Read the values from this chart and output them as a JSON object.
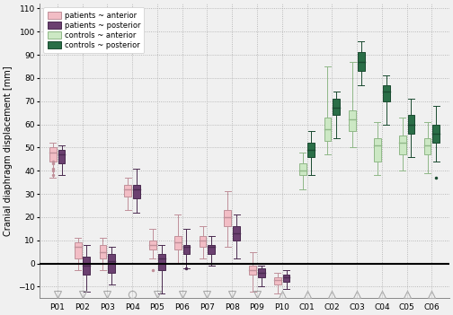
{
  "subjects": [
    "P01",
    "P02",
    "P03",
    "P04",
    "P05",
    "P06",
    "P07",
    "P08",
    "P09",
    "P10",
    "C01",
    "C02",
    "C03",
    "C04",
    "C05",
    "C06"
  ],
  "patient_anterior": {
    "P01": {
      "q1": 44,
      "med": 48,
      "q3": 50,
      "whislo": 37,
      "whishi": 52,
      "fliers": [
        38,
        40,
        41,
        43,
        44
      ]
    },
    "P02": {
      "q1": 2,
      "med": 7,
      "q3": 9,
      "whislo": -3,
      "whishi": 11,
      "fliers": []
    },
    "P03": {
      "q1": 2,
      "med": 5,
      "q3": 8,
      "whislo": -3,
      "whishi": 11,
      "fliers": []
    },
    "P04": {
      "q1": 29,
      "med": 32,
      "q3": 34,
      "whislo": 23,
      "whishi": 37,
      "fliers": []
    },
    "P05": {
      "q1": 6,
      "med": 8,
      "q3": 10,
      "whislo": 2,
      "whishi": 15,
      "fliers": [
        -3
      ]
    },
    "P06": {
      "q1": 6,
      "med": 9,
      "q3": 12,
      "whislo": 0,
      "whishi": 21,
      "fliers": []
    },
    "P07": {
      "q1": 7,
      "med": 10,
      "q3": 12,
      "whislo": 2,
      "whishi": 16,
      "fliers": []
    },
    "P08": {
      "q1": 16,
      "med": 20,
      "q3": 23,
      "whislo": 7,
      "whishi": 31,
      "fliers": []
    },
    "P09": {
      "q1": -5,
      "med": -3,
      "q3": -1,
      "whislo": -12,
      "whishi": 5,
      "fliers": []
    },
    "P10": {
      "q1": -9,
      "med": -7,
      "q3": -6,
      "whislo": -13,
      "whishi": -4,
      "fliers": []
    },
    "C01": null,
    "C02": null,
    "C03": null,
    "C04": null,
    "C05": null,
    "C06": null
  },
  "patient_posterior": {
    "P01": {
      "q1": 43,
      "med": 47,
      "q3": 49,
      "whislo": 38,
      "whishi": 51,
      "fliers": []
    },
    "P02": {
      "q1": -5,
      "med": -1,
      "q3": 3,
      "whislo": -12,
      "whishi": 8,
      "fliers": []
    },
    "P03": {
      "q1": -4,
      "med": 1,
      "q3": 4,
      "whislo": -9,
      "whishi": 7,
      "fliers": []
    },
    "P04": {
      "q1": 28,
      "med": 32,
      "q3": 34,
      "whislo": 22,
      "whishi": 41,
      "fliers": []
    },
    "P05": {
      "q1": -3,
      "med": 2,
      "q3": 4,
      "whislo": -13,
      "whishi": 8,
      "fliers": []
    },
    "P06": {
      "q1": 4,
      "med": 7,
      "q3": 8,
      "whislo": -2,
      "whishi": 15,
      "fliers": [
        -2
      ]
    },
    "P07": {
      "q1": 4,
      "med": 7,
      "q3": 8,
      "whislo": -1,
      "whishi": 12,
      "fliers": []
    },
    "P08": {
      "q1": 10,
      "med": 13,
      "q3": 16,
      "whislo": 2,
      "whishi": 21,
      "fliers": []
    },
    "P09": {
      "q1": -6,
      "med": -4,
      "q3": -2,
      "whislo": -10,
      "whishi": -1,
      "fliers": []
    },
    "P10": {
      "q1": -8,
      "med": -6,
      "q3": -5,
      "whislo": -11,
      "whishi": -3,
      "fliers": []
    },
    "C01": null,
    "C02": null,
    "C03": null,
    "C04": null,
    "C05": null,
    "C06": null
  },
  "control_anterior": {
    "P01": null,
    "P02": null,
    "P03": null,
    "P04": null,
    "P05": null,
    "P06": null,
    "P07": null,
    "P08": null,
    "P09": null,
    "P10": null,
    "C01": {
      "q1": 38,
      "med": 40,
      "q3": 43,
      "whislo": 32,
      "whishi": 48,
      "fliers": []
    },
    "C02": {
      "q1": 53,
      "med": 58,
      "q3": 63,
      "whislo": 47,
      "whishi": 85,
      "fliers": []
    },
    "C03": {
      "q1": 57,
      "med": 62,
      "q3": 66,
      "whislo": 50,
      "whishi": 87,
      "fliers": []
    },
    "C04": {
      "q1": 44,
      "med": 51,
      "q3": 54,
      "whislo": 38,
      "whishi": 61,
      "fliers": []
    },
    "C05": {
      "q1": 47,
      "med": 52,
      "q3": 55,
      "whislo": 40,
      "whishi": 63,
      "fliers": []
    },
    "C06": {
      "q1": 47,
      "med": 51,
      "q3": 54,
      "whislo": 39,
      "whishi": 61,
      "fliers": []
    }
  },
  "control_posterior": {
    "P01": null,
    "P02": null,
    "P03": null,
    "P04": null,
    "P05": null,
    "P06": null,
    "P07": null,
    "P08": null,
    "P09": null,
    "P10": null,
    "C01": {
      "q1": 46,
      "med": 49,
      "q3": 52,
      "whislo": 38,
      "whishi": 57,
      "fliers": []
    },
    "C02": {
      "q1": 64,
      "med": 67,
      "q3": 71,
      "whislo": 54,
      "whishi": 74,
      "fliers": []
    },
    "C03": {
      "q1": 83,
      "med": 87,
      "q3": 91,
      "whislo": 77,
      "whishi": 96,
      "fliers": []
    },
    "C04": {
      "q1": 70,
      "med": 74,
      "q3": 77,
      "whislo": 60,
      "whishi": 81,
      "fliers": []
    },
    "C05": {
      "q1": 56,
      "med": 60,
      "q3": 64,
      "whislo": 46,
      "whishi": 71,
      "fliers": []
    },
    "C06": {
      "q1": 52,
      "med": 56,
      "q3": 60,
      "whislo": 44,
      "whishi": 68,
      "fliers": [
        37
      ]
    }
  },
  "colors": {
    "patient_anterior": "#f2bdc5",
    "patient_posterior": "#6b4070",
    "control_anterior": "#cce8c4",
    "control_posterior": "#2a6e47"
  },
  "edge_colors": {
    "patient_anterior": "#c0909a",
    "patient_posterior": "#4a2a50",
    "control_anterior": "#90b888",
    "control_posterior": "#1a4a30"
  },
  "ylim": [
    -15,
    112
  ],
  "yticks": [
    -10,
    0,
    10,
    20,
    30,
    40,
    50,
    60,
    70,
    80,
    90,
    100,
    110
  ],
  "ylabel": "Cranial diaphragm displacement [mm]",
  "markers_down": [
    "P01",
    "P02",
    "P03",
    "P05",
    "P06",
    "P07",
    "P08",
    "P09"
  ],
  "markers_up": [
    "P10",
    "C01",
    "C02",
    "C03",
    "C04",
    "C05",
    "C06"
  ],
  "marker_circle": [
    "P04"
  ],
  "bg_color": "#f0f0f0",
  "legend_labels": [
    "patients ~ anterior",
    "patients ~ posterior",
    "controls ~ anterior",
    "controls ~ posterior"
  ]
}
